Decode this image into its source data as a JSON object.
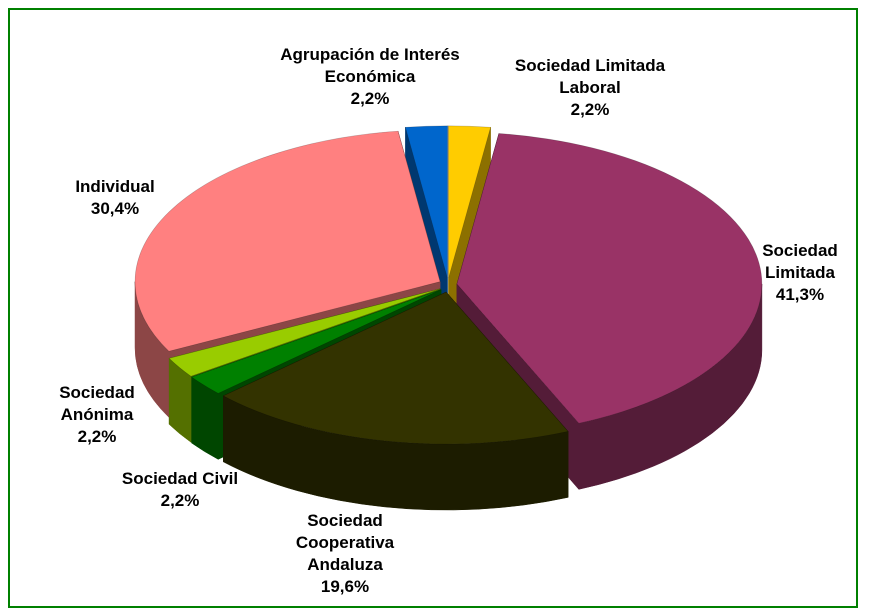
{
  "chart_data": {
    "type": "pie3d",
    "categories": [
      "Sociedad Limitada Laboral",
      "Sociedad Limitada",
      "Sociedad Cooperativa Andaluza",
      "Sociedad Civil",
      "Sociedad Anónima",
      "Individual",
      "Agrupación de Interés Económica"
    ],
    "values": [
      2.2,
      41.3,
      19.6,
      2.2,
      2.2,
      30.4,
      2.2
    ],
    "value_labels": [
      "2,2%",
      "41,3%",
      "19,6%",
      "2,2%",
      "2,2%",
      "30,4%",
      "2,2%"
    ],
    "colors": [
      "#ffcc00",
      "#993366",
      "#333300",
      "#008000",
      "#99cc00",
      "#ff8080",
      "#0066cc"
    ]
  }
}
